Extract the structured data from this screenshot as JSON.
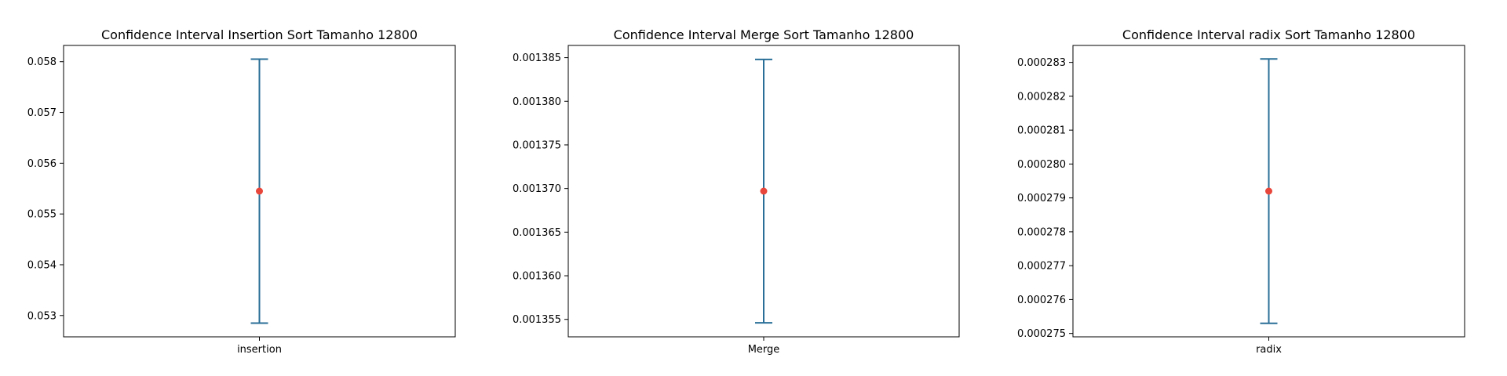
{
  "chart_data": [
    {
      "type": "errorbar",
      "title": "Confidence Interval Insertion Sort Tamanho 12800",
      "categories": [
        "insertion"
      ],
      "mean": [
        0.05545
      ],
      "ci_low": [
        0.05285
      ],
      "ci_high": [
        0.05805
      ],
      "ylim": [
        0.05258,
        0.05832
      ],
      "yticks": [
        0.053,
        0.054,
        0.055,
        0.056,
        0.057,
        0.058
      ],
      "ytick_labels": [
        "0.053",
        "0.054",
        "0.055",
        "0.056",
        "0.057",
        "0.058"
      ],
      "xlabel": "",
      "ylabel": "",
      "grid": false
    },
    {
      "type": "errorbar",
      "title": "Confidence Interval Merge Sort Tamanho 12800",
      "categories": [
        "Merge"
      ],
      "mean": [
        0.0013697
      ],
      "ci_low": [
        0.0013546
      ],
      "ci_high": [
        0.0013848
      ],
      "ylim": [
        0.001353,
        0.0013864
      ],
      "yticks": [
        0.001355,
        0.00136,
        0.001365,
        0.00137,
        0.001375,
        0.00138,
        0.001385
      ],
      "ytick_labels": [
        "0.001355",
        "0.001360",
        "0.001365",
        "0.001370",
        "0.001375",
        "0.001380",
        "0.001385"
      ],
      "xlabel": "",
      "ylabel": "",
      "grid": false
    },
    {
      "type": "errorbar",
      "title": "Confidence Interval radix Sort Tamanho 12800",
      "categories": [
        "radix"
      ],
      "mean": [
        0.0002792
      ],
      "ci_low": [
        0.0002753
      ],
      "ci_high": [
        0.0002831
      ],
      "ylim": [
        0.0002749,
        0.0002835
      ],
      "yticks": [
        0.000275,
        0.000276,
        0.000277,
        0.000278,
        0.000279,
        0.00028,
        0.000281,
        0.000282,
        0.000283
      ],
      "ytick_labels": [
        "0.000275",
        "0.000276",
        "0.000277",
        "0.000278",
        "0.000279",
        "0.000280",
        "0.000281",
        "0.000282",
        "0.000283"
      ],
      "xlabel": "",
      "ylabel": "",
      "grid": false
    }
  ],
  "colors": {
    "errorbar": "#1f77b4",
    "errorbar_dark": "#2a6f97",
    "mean_marker": "#e8463a",
    "axes": "#000000"
  }
}
